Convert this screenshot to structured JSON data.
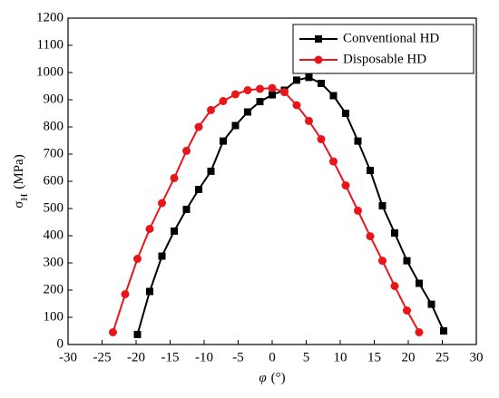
{
  "chart_data": {
    "type": "line",
    "x_label": {
      "symbol": "φ",
      "unit": "(°)"
    },
    "y_label": {
      "symbol": "σ",
      "subscript": "H",
      "unit": "(MPa)"
    },
    "xlim": [
      -30,
      30
    ],
    "xticks": [
      -30,
      -25,
      -20,
      -15,
      -10,
      -5,
      0,
      5,
      10,
      15,
      20,
      25,
      30
    ],
    "ylim": [
      0,
      1200
    ],
    "yticks": [
      0,
      100,
      200,
      300,
      400,
      500,
      600,
      700,
      800,
      900,
      1000,
      1100,
      1200
    ],
    "legend": "upper right",
    "series": [
      {
        "name": "Conventional HD",
        "color": "#000000",
        "marker": "square",
        "x": [
          -19.8,
          -18,
          -16.2,
          -14.4,
          -12.6,
          -10.8,
          -9,
          -7.2,
          -5.4,
          -3.6,
          -1.8,
          0,
          1.8,
          3.6,
          5.4,
          7.2,
          9,
          10.8,
          12.6,
          14.4,
          16.2,
          18,
          19.8,
          21.6,
          23.4,
          25.2
        ],
        "values": [
          37,
          195,
          325,
          417,
          497,
          570,
          637,
          748,
          805,
          855,
          893,
          918,
          935,
          972,
          982,
          960,
          915,
          850,
          748,
          640,
          510,
          410,
          308,
          225,
          148,
          50
        ]
      },
      {
        "name": "Disposable HD",
        "color": "#e8151b",
        "marker": "circle",
        "x": [
          -23.4,
          -21.6,
          -19.8,
          -18,
          -16.2,
          -14.4,
          -12.6,
          -10.8,
          -9,
          -7.2,
          -5.4,
          -3.6,
          -1.8,
          0,
          1.8,
          3.6,
          5.4,
          7.2,
          9,
          10.8,
          12.6,
          14.4,
          16.2,
          18,
          19.8,
          21.6
        ],
        "values": [
          45,
          185,
          315,
          425,
          520,
          612,
          712,
          800,
          862,
          895,
          920,
          935,
          940,
          943,
          928,
          880,
          822,
          755,
          673,
          585,
          492,
          398,
          308,
          215,
          125,
          45
        ]
      }
    ]
  }
}
